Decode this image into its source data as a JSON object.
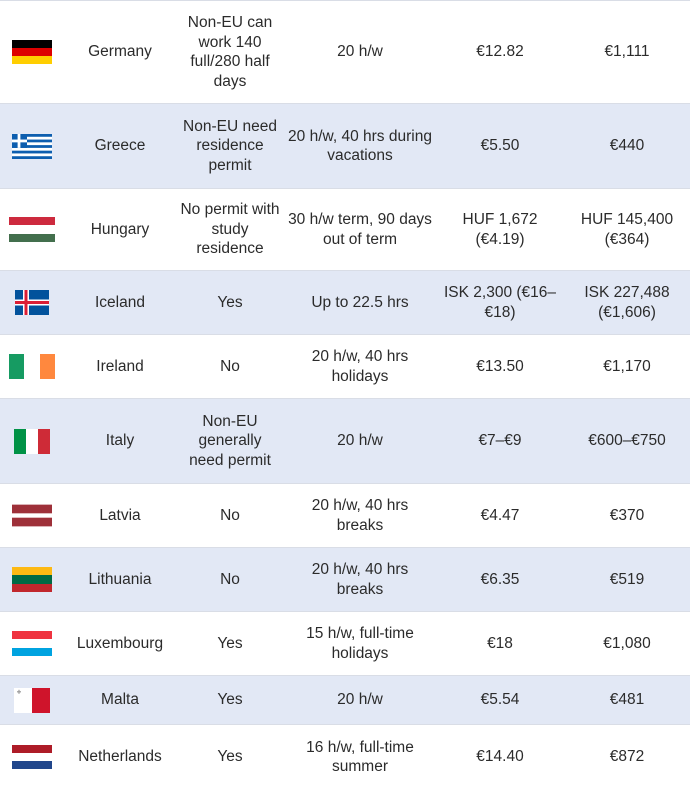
{
  "rows": [
    {
      "country": "Germany",
      "permit": "Non-EU can work 140 full/280 half days",
      "hours": "20 h/w",
      "wage": "€12.82",
      "monthly": "€1,111",
      "flag_icon": "germany-flag-icon",
      "alt": false
    },
    {
      "country": "Greece",
      "permit": "Non-EU need residence permit",
      "hours": "20 h/w, 40 hrs during vacations",
      "wage": "€5.50",
      "monthly": "€440",
      "flag_icon": "greece-flag-icon",
      "alt": true
    },
    {
      "country": "Hungary",
      "permit": "No permit with study residence",
      "hours": "30 h/w term, 90 days out of term",
      "wage": "HUF 1,672 (€4.19)",
      "monthly": "HUF 145,400 (€364)",
      "flag_icon": "hungary-flag-icon",
      "alt": false
    },
    {
      "country": "Iceland",
      "permit": "Yes",
      "hours": "Up to 22.5 hrs",
      "wage": "ISK 2,300 (€16–€18)",
      "monthly": "ISK 227,488 (€1,606)",
      "flag_icon": "iceland-flag-icon",
      "alt": true
    },
    {
      "country": "Ireland",
      "permit": "No",
      "hours": "20 h/w, 40 hrs holidays",
      "wage": "€13.50",
      "monthly": "€1,170",
      "flag_icon": "ireland-flag-icon",
      "alt": false
    },
    {
      "country": "Italy",
      "permit": "Non-EU generally need permit",
      "hours": "20 h/w",
      "wage": "€7–€9",
      "monthly": "€600–€750",
      "flag_icon": "italy-flag-icon",
      "alt": true
    },
    {
      "country": "Latvia",
      "permit": "No",
      "hours": "20 h/w, 40 hrs breaks",
      "wage": "€4.47",
      "monthly": "€370",
      "flag_icon": "latvia-flag-icon",
      "alt": false
    },
    {
      "country": "Lithuania",
      "permit": "No",
      "hours": "20 h/w, 40 hrs breaks",
      "wage": "€6.35",
      "monthly": "€519",
      "flag_icon": "lithuania-flag-icon",
      "alt": true
    },
    {
      "country": "Luxembourg",
      "permit": "Yes",
      "hours": "15 h/w, full-time holidays",
      "wage": "€18",
      "monthly": "€1,080",
      "flag_icon": "luxembourg-flag-icon",
      "alt": false
    },
    {
      "country": "Malta",
      "permit": "Yes",
      "hours": "20 h/w",
      "wage": "€5.54",
      "monthly": "€481",
      "flag_icon": "malta-flag-icon",
      "alt": true
    },
    {
      "country": "Netherlands",
      "permit": "Yes",
      "hours": "16 h/w, full-time summer",
      "wage": "€14.40",
      "monthly": "€872",
      "flag_icon": "netherlands-flag-icon",
      "alt": false
    }
  ],
  "colors": {
    "alt_row": "#e2e8f5",
    "border": "#d9dde6",
    "text": "#2b2b2b"
  }
}
